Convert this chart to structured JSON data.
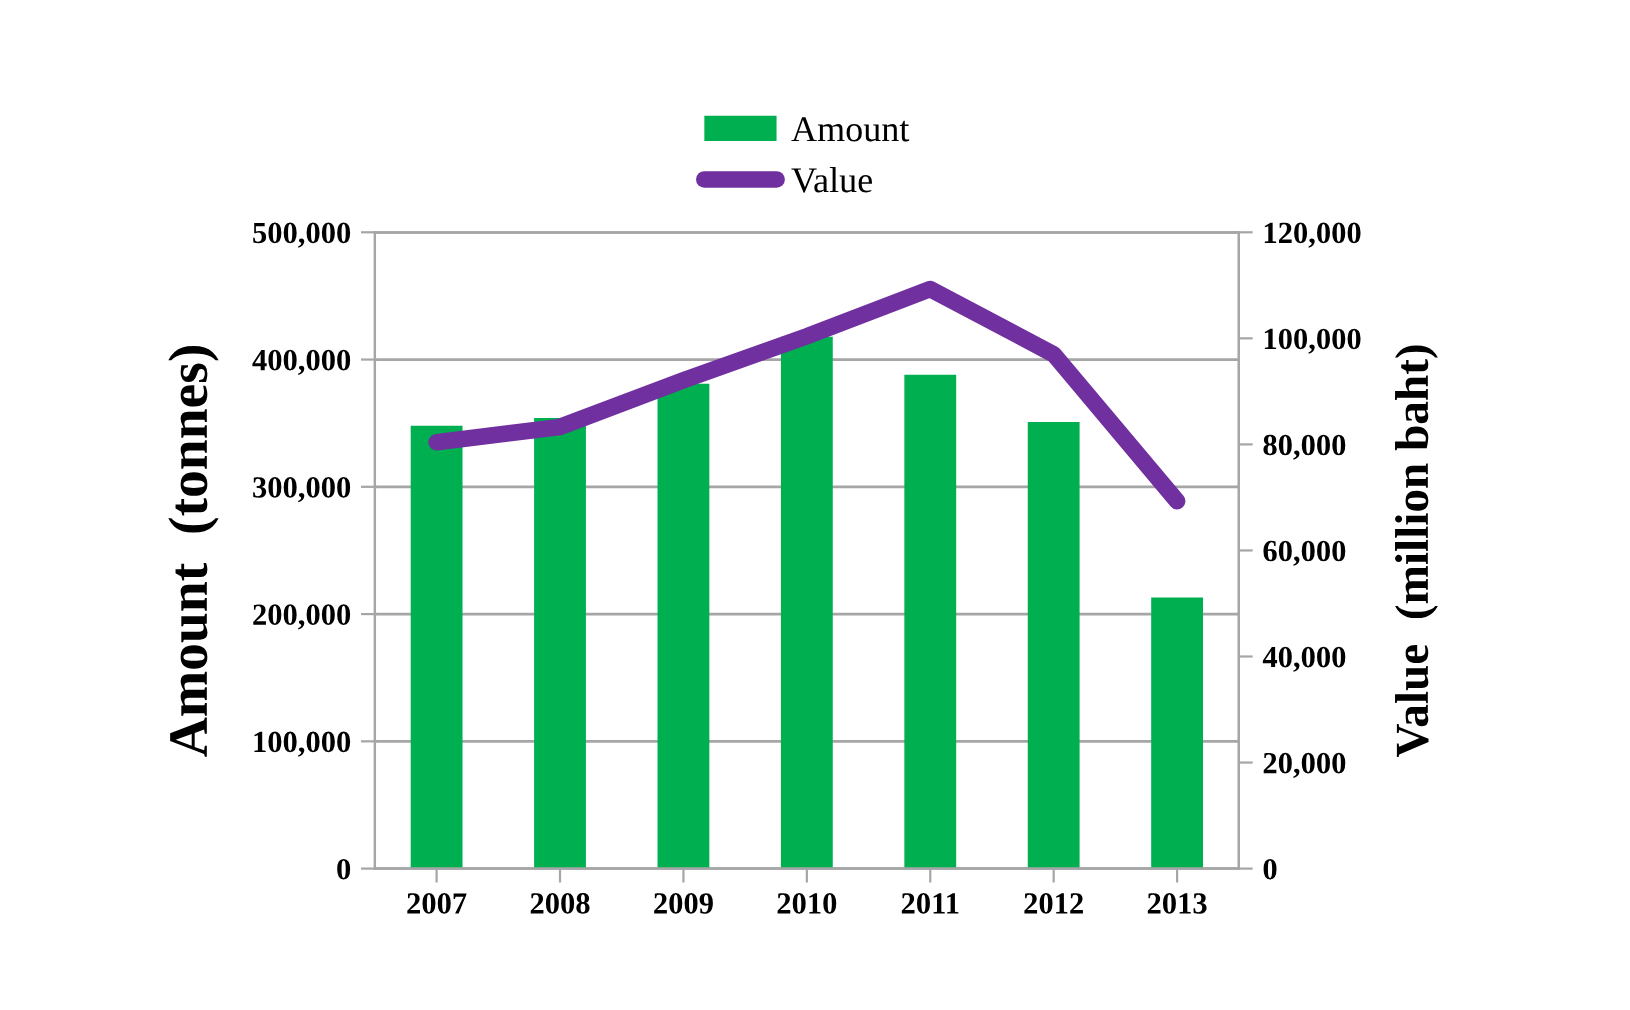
{
  "chart_data": {
    "type": "bar",
    "xlabel": null,
    "ylabel": "Amount  (tonnes)",
    "y2label": "Value  (million baht)",
    "categories": [
      "2007",
      "2008",
      "2009",
      "2010",
      "2011",
      "2012",
      "2013"
    ],
    "series": [
      {
        "name": "Amount",
        "color": "#00b050",
        "values": [
          348000,
          354000,
          381000,
          418000,
          388000,
          351000,
          213000
        ]
      },
      {
        "name": "Value",
        "type": "line",
        "axis": "y2",
        "color": "#7030a0",
        "values": [
          80400,
          83300,
          92100,
          100400,
          109300,
          97000,
          69300
        ]
      }
    ],
    "ylim": [
      0,
      500000
    ],
    "yticks": [
      {
        "value": 0,
        "label": "0"
      },
      {
        "value": 100000,
        "label": "100,000"
      },
      {
        "value": 200000,
        "label": "200,000"
      },
      {
        "value": 300000,
        "label": "300,000"
      },
      {
        "value": 400000,
        "label": "400,000"
      },
      {
        "value": 500000,
        "label": "500,000"
      }
    ],
    "y2lim": [
      0,
      120000
    ],
    "y2ticks": [
      {
        "value": 0,
        "label": "0"
      },
      {
        "value": 20000,
        "label": "20,000"
      },
      {
        "value": 40000,
        "label": "40,000"
      },
      {
        "value": 60000,
        "label": "60,000"
      },
      {
        "value": 80000,
        "label": "80,000"
      },
      {
        "value": 100000,
        "label": "100,000"
      },
      {
        "value": 120000,
        "label": "120,000"
      }
    ],
    "grid": "y",
    "legend": "top",
    "line_style": "solid",
    "marker": "none"
  }
}
